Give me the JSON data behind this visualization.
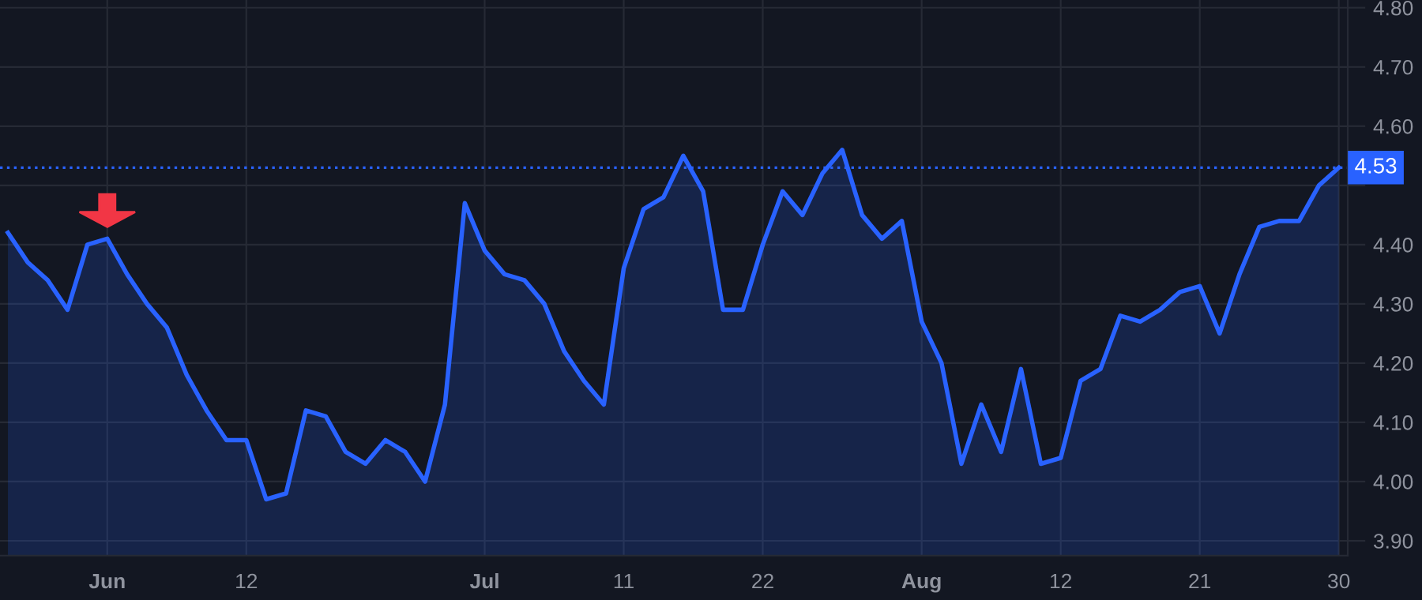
{
  "chart_data": {
    "type": "area",
    "categories": [
      null,
      null,
      null,
      null,
      null,
      "Jun",
      null,
      null,
      null,
      null,
      null,
      null,
      "12",
      null,
      null,
      null,
      null,
      null,
      null,
      null,
      null,
      null,
      null,
      null,
      "Jul",
      null,
      null,
      null,
      null,
      null,
      null,
      "11",
      null,
      null,
      null,
      null,
      null,
      null,
      "22",
      null,
      null,
      null,
      null,
      null,
      null,
      null,
      "Aug",
      null,
      null,
      null,
      null,
      null,
      null,
      "12",
      null,
      null,
      null,
      null,
      null,
      null,
      "21",
      null,
      null,
      null,
      null,
      null,
      null,
      "30"
    ],
    "series": [
      {
        "color": "#2962ff",
        "values": [
          4.42,
          4.37,
          4.34,
          4.29,
          4.4,
          4.41,
          4.35,
          4.3,
          4.26,
          4.18,
          4.12,
          4.07,
          4.07,
          3.97,
          3.98,
          4.12,
          4.11,
          4.05,
          4.03,
          4.07,
          4.05,
          4.0,
          4.13,
          4.47,
          4.39,
          4.35,
          4.34,
          4.3,
          4.22,
          4.17,
          4.13,
          4.36,
          4.46,
          4.48,
          4.55,
          4.49,
          4.29,
          4.29,
          4.4,
          4.49,
          4.45,
          4.52,
          4.56,
          4.45,
          4.41,
          4.44,
          4.27,
          4.2,
          4.03,
          4.13,
          4.05,
          4.19,
          4.03,
          4.04,
          4.17,
          4.19,
          4.28,
          4.27,
          4.29,
          4.32,
          4.33,
          4.25,
          4.35,
          4.43,
          4.44,
          4.44,
          4.5,
          4.53
        ]
      }
    ],
    "ylim": [
      3.875,
      4.813
    ],
    "yticks": [
      {
        "value": 3.9,
        "label": "3.90"
      },
      {
        "value": 4.0,
        "label": "4.00"
      },
      {
        "value": 4.1,
        "label": "4.10"
      },
      {
        "value": 4.2,
        "label": "4.20"
      },
      {
        "value": 4.3,
        "label": "4.30"
      },
      {
        "value": 4.4,
        "label": "4.40"
      },
      {
        "value": 4.5,
        "label": null
      },
      {
        "value": 4.6,
        "label": "4.60"
      },
      {
        "value": 4.7,
        "label": "4.70"
      },
      {
        "value": 4.8,
        "label": "4.80"
      }
    ],
    "ref_lines": [
      {
        "axis": "y",
        "value": 4.53,
        "label": "4.53",
        "color": "#2962ff",
        "line_style": "dotted"
      }
    ],
    "grid": true,
    "legend": false,
    "marker": "none",
    "line_style": "solid"
  }
}
